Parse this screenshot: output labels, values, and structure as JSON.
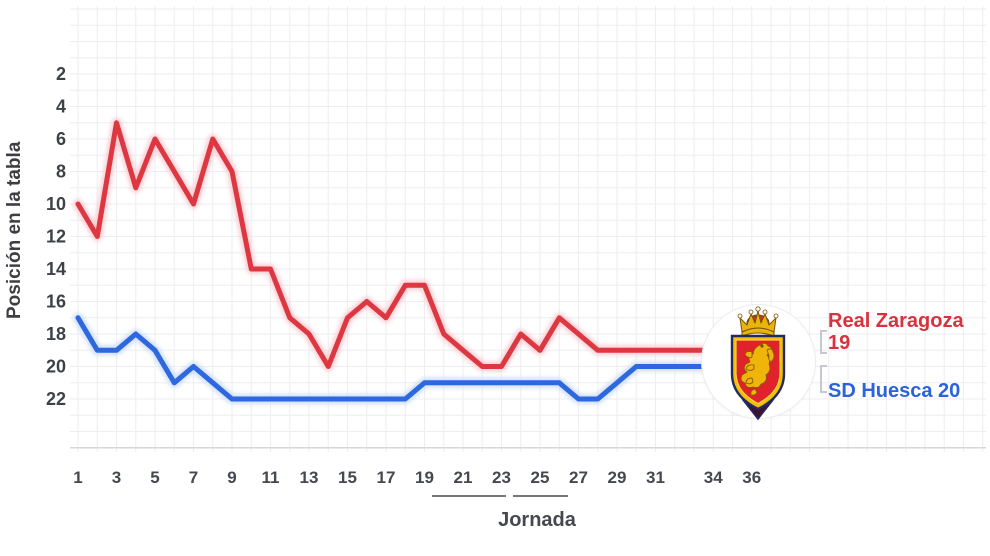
{
  "chart_data": {
    "type": "line",
    "xlabel": "Jornada",
    "ylabel": "Posición en la tabla",
    "y_axis_inverted": true,
    "x_ticks": [
      1,
      3,
      5,
      7,
      9,
      11,
      13,
      15,
      17,
      19,
      21,
      23,
      25,
      27,
      29,
      31,
      34,
      36
    ],
    "y_ticks": [
      2,
      4,
      6,
      8,
      10,
      12,
      14,
      16,
      18,
      20,
      22
    ],
    "x_range": [
      1,
      36
    ],
    "y_range": [
      1,
      23
    ],
    "grid": true,
    "legend_position": "right",
    "x": [
      1,
      2,
      3,
      4,
      5,
      6,
      7,
      8,
      9,
      10,
      11,
      12,
      13,
      14,
      15,
      16,
      17,
      18,
      19,
      20,
      21,
      22,
      23,
      24,
      25,
      26,
      27,
      28,
      29,
      30,
      31,
      32,
      33,
      34
    ],
    "series": [
      {
        "name": "Real Zaragoza",
        "color": "#dd3742",
        "halo_color": "#f7ccd1",
        "final_value": 19,
        "values": [
          10,
          12,
          5,
          9,
          6,
          8,
          10,
          6,
          8,
          14,
          14,
          17,
          18,
          20,
          17,
          16,
          17,
          15,
          15,
          18,
          19,
          20,
          20,
          18,
          19,
          17,
          18,
          19,
          19,
          19,
          19,
          19,
          19,
          19
        ]
      },
      {
        "name": "SD Huesca",
        "color": "#2d68df",
        "halo_color": "#cdddf6",
        "final_value": 20,
        "values": [
          17,
          19,
          19,
          18,
          19,
          21,
          20,
          21,
          22,
          22,
          22,
          22,
          22,
          22,
          22,
          22,
          22,
          22,
          21,
          21,
          21,
          21,
          21,
          21,
          21,
          21,
          22,
          22,
          21,
          20,
          20,
          20,
          20,
          20
        ]
      }
    ]
  },
  "legend": {
    "zaragoza_name": "Real Zaragoza",
    "zaragoza_value": "19",
    "huesca_text": "SD Huesca 20",
    "zaragoza_color": "#d8323e",
    "huesca_color": "#2a63dd"
  },
  "badge": {
    "team": "Real Zaragoza"
  }
}
